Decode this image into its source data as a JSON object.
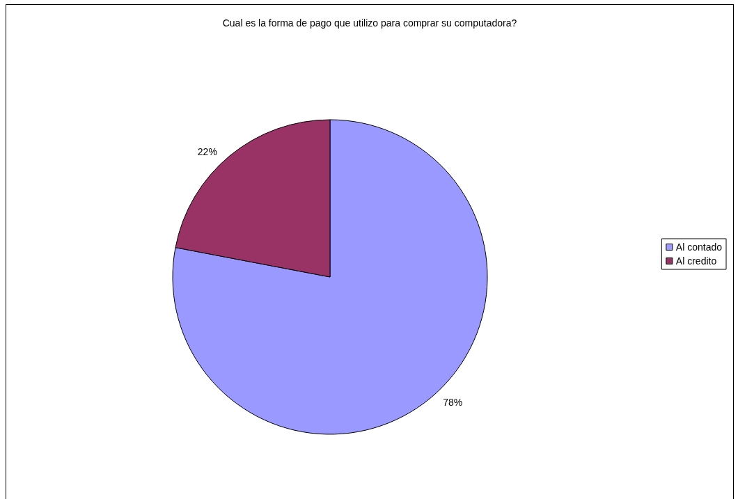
{
  "chart_data": {
    "type": "pie",
    "title": "Cual es la forma de pago que utilizo para comprar su computadora?",
    "categories": [
      "Al contado",
      "Al credito"
    ],
    "values": [
      78,
      22
    ],
    "colors": [
      "#9999ff",
      "#993366"
    ],
    "value_labels": [
      "78%",
      "22%"
    ],
    "legend": "right"
  }
}
